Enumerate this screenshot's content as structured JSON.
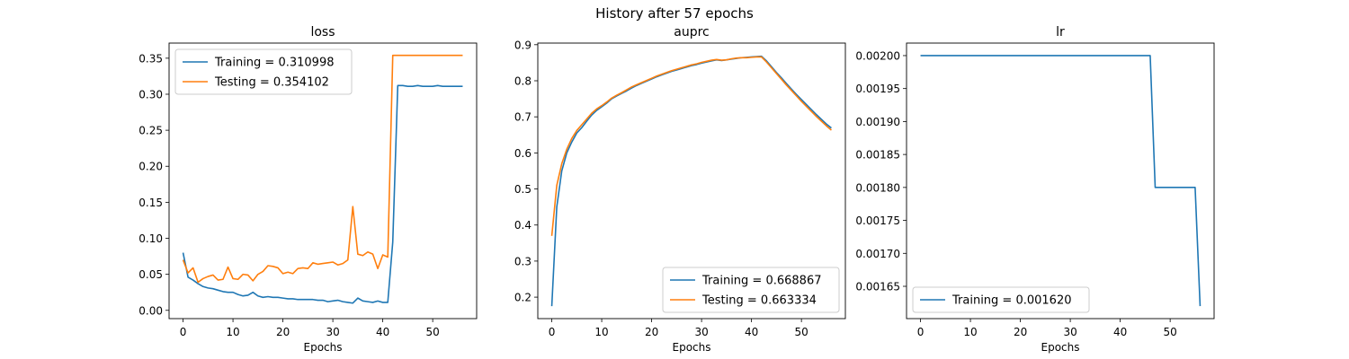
{
  "figure": {
    "suptitle": "History after 57 epochs"
  },
  "colors": {
    "training": "#1f77b4",
    "testing": "#ff7f0e"
  },
  "chart_data": [
    {
      "type": "line",
      "title": "loss",
      "xlabel": "Epochs",
      "ylabel": "",
      "xlim": [
        -2.8,
        58.8
      ],
      "ylim": [
        -0.0115,
        0.371
      ],
      "xticks": [
        0,
        10,
        20,
        30,
        40,
        50
      ],
      "xtick_labels": [
        "0",
        "10",
        "20",
        "30",
        "40",
        "50"
      ],
      "yticks": [
        0.0,
        0.05,
        0.1,
        0.15,
        0.2,
        0.25,
        0.3,
        0.35
      ],
      "ytick_labels": [
        "0.00",
        "0.05",
        "0.10",
        "0.15",
        "0.20",
        "0.25",
        "0.30",
        "0.35"
      ],
      "legend_position": "upper-left",
      "series": [
        {
          "name": "Training = 0.310998",
          "color": "#1f77b4",
          "x": [
            0,
            1,
            2,
            3,
            4,
            5,
            6,
            7,
            8,
            9,
            10,
            11,
            12,
            13,
            14,
            15,
            16,
            17,
            18,
            19,
            20,
            21,
            22,
            23,
            24,
            25,
            26,
            27,
            28,
            29,
            30,
            31,
            32,
            33,
            34,
            35,
            36,
            37,
            38,
            39,
            40,
            41,
            42,
            43,
            44,
            45,
            46,
            47,
            48,
            49,
            50,
            51,
            52,
            53,
            54,
            55,
            56
          ],
          "y": [
            0.08,
            0.046,
            0.042,
            0.037,
            0.033,
            0.031,
            0.03,
            0.028,
            0.026,
            0.025,
            0.025,
            0.022,
            0.02,
            0.021,
            0.025,
            0.02,
            0.018,
            0.019,
            0.018,
            0.018,
            0.017,
            0.016,
            0.016,
            0.015,
            0.015,
            0.015,
            0.015,
            0.014,
            0.014,
            0.012,
            0.013,
            0.014,
            0.012,
            0.011,
            0.01,
            0.017,
            0.013,
            0.012,
            0.011,
            0.013,
            0.011,
            0.011,
            0.095,
            0.312,
            0.312,
            0.311,
            0.311,
            0.312,
            0.311,
            0.311,
            0.311,
            0.312,
            0.311,
            0.311,
            0.311,
            0.311,
            0.311
          ]
        },
        {
          "name": "Testing = 0.354102",
          "color": "#ff7f0e",
          "x": [
            0,
            1,
            2,
            3,
            4,
            5,
            6,
            7,
            8,
            9,
            10,
            11,
            12,
            13,
            14,
            15,
            16,
            17,
            18,
            19,
            20,
            21,
            22,
            23,
            24,
            25,
            26,
            27,
            28,
            29,
            30,
            31,
            32,
            33,
            34,
            35,
            36,
            37,
            38,
            39,
            40,
            41,
            42,
            43,
            44,
            45,
            46,
            47,
            48,
            49,
            50,
            51,
            52,
            53,
            54,
            55,
            56
          ],
          "y": [
            0.07,
            0.052,
            0.059,
            0.039,
            0.044,
            0.047,
            0.049,
            0.042,
            0.043,
            0.06,
            0.044,
            0.043,
            0.05,
            0.049,
            0.041,
            0.05,
            0.054,
            0.062,
            0.061,
            0.059,
            0.051,
            0.053,
            0.051,
            0.058,
            0.059,
            0.058,
            0.066,
            0.064,
            0.065,
            0.066,
            0.067,
            0.063,
            0.065,
            0.07,
            0.144,
            0.078,
            0.076,
            0.081,
            0.078,
            0.058,
            0.077,
            0.074,
            0.354,
            0.354,
            0.354,
            0.354,
            0.354,
            0.354,
            0.354,
            0.354,
            0.354,
            0.354,
            0.354,
            0.354,
            0.354,
            0.354,
            0.354
          ]
        }
      ]
    },
    {
      "type": "line",
      "title": "auprc",
      "xlabel": "Epochs",
      "ylabel": "",
      "xlim": [
        -2.8,
        58.8
      ],
      "ylim": [
        0.1405,
        0.9045
      ],
      "xticks": [
        0,
        10,
        20,
        30,
        40,
        50
      ],
      "xtick_labels": [
        "0",
        "10",
        "20",
        "30",
        "40",
        "50"
      ],
      "yticks": [
        0.2,
        0.3,
        0.4,
        0.5,
        0.6,
        0.7,
        0.8,
        0.9
      ],
      "ytick_labels": [
        "0.2",
        "0.3",
        "0.4",
        "0.5",
        "0.6",
        "0.7",
        "0.8",
        "0.9"
      ],
      "legend_position": "lower-right",
      "series": [
        {
          "name": "Training = 0.668867",
          "color": "#1f77b4",
          "x": [
            0,
            1,
            2,
            3,
            4,
            5,
            6,
            7,
            8,
            9,
            10,
            11,
            12,
            13,
            14,
            15,
            16,
            17,
            18,
            19,
            20,
            21,
            22,
            23,
            24,
            25,
            26,
            27,
            28,
            29,
            30,
            31,
            32,
            33,
            34,
            35,
            36,
            37,
            38,
            39,
            40,
            41,
            42,
            43,
            44,
            45,
            46,
            47,
            48,
            49,
            50,
            51,
            52,
            53,
            54,
            55,
            56
          ],
          "y": [
            0.175,
            0.45,
            0.55,
            0.6,
            0.63,
            0.655,
            0.67,
            0.688,
            0.705,
            0.718,
            0.728,
            0.738,
            0.75,
            0.758,
            0.765,
            0.772,
            0.78,
            0.787,
            0.793,
            0.799,
            0.805,
            0.811,
            0.816,
            0.821,
            0.826,
            0.83,
            0.834,
            0.838,
            0.842,
            0.845,
            0.849,
            0.852,
            0.855,
            0.858,
            0.856,
            0.858,
            0.86,
            0.862,
            0.864,
            0.865,
            0.866,
            0.867,
            0.868,
            0.855,
            0.839,
            0.823,
            0.808,
            0.792,
            0.777,
            0.762,
            0.748,
            0.734,
            0.72,
            0.706,
            0.693,
            0.68,
            0.669
          ]
        },
        {
          "name": "Testing = 0.663334",
          "color": "#ff7f0e",
          "x": [
            0,
            1,
            2,
            3,
            4,
            5,
            6,
            7,
            8,
            9,
            10,
            11,
            12,
            13,
            14,
            15,
            16,
            17,
            18,
            19,
            20,
            21,
            22,
            23,
            24,
            25,
            26,
            27,
            28,
            29,
            30,
            31,
            32,
            33,
            34,
            35,
            36,
            37,
            38,
            39,
            40,
            41,
            42,
            43,
            44,
            45,
            46,
            47,
            48,
            49,
            50,
            51,
            52,
            53,
            54,
            55,
            56
          ],
          "y": [
            0.37,
            0.51,
            0.57,
            0.61,
            0.64,
            0.662,
            0.678,
            0.694,
            0.71,
            0.722,
            0.731,
            0.741,
            0.752,
            0.76,
            0.767,
            0.775,
            0.783,
            0.789,
            0.795,
            0.801,
            0.807,
            0.813,
            0.818,
            0.823,
            0.828,
            0.832,
            0.836,
            0.84,
            0.844,
            0.847,
            0.851,
            0.854,
            0.857,
            0.859,
            0.857,
            0.858,
            0.861,
            0.863,
            0.864,
            0.864,
            0.865,
            0.866,
            0.866,
            0.852,
            0.836,
            0.82,
            0.804,
            0.788,
            0.773,
            0.758,
            0.743,
            0.729,
            0.715,
            0.701,
            0.688,
            0.675,
            0.663
          ]
        }
      ]
    },
    {
      "type": "line",
      "title": "lr",
      "xlabel": "Epochs",
      "ylabel": "",
      "xlim": [
        -2.8,
        58.8
      ],
      "ylim": [
        0.001601,
        0.002019
      ],
      "xticks": [
        0,
        10,
        20,
        30,
        40,
        50
      ],
      "xtick_labels": [
        "0",
        "10",
        "20",
        "30",
        "40",
        "50"
      ],
      "yticks": [
        0.00165,
        0.0017,
        0.00175,
        0.0018,
        0.00185,
        0.0019,
        0.00195,
        0.002
      ],
      "ytick_labels": [
        "0.00165",
        "0.00170",
        "0.00175",
        "0.00180",
        "0.00185",
        "0.00190",
        "0.00195",
        "0.00200"
      ],
      "legend_position": "lower-left",
      "series": [
        {
          "name": "Training = 0.001620",
          "color": "#1f77b4",
          "x": [
            0,
            46,
            47,
            55,
            56
          ],
          "y": [
            0.002,
            0.002,
            0.0018,
            0.0018,
            0.00162
          ]
        }
      ]
    }
  ]
}
